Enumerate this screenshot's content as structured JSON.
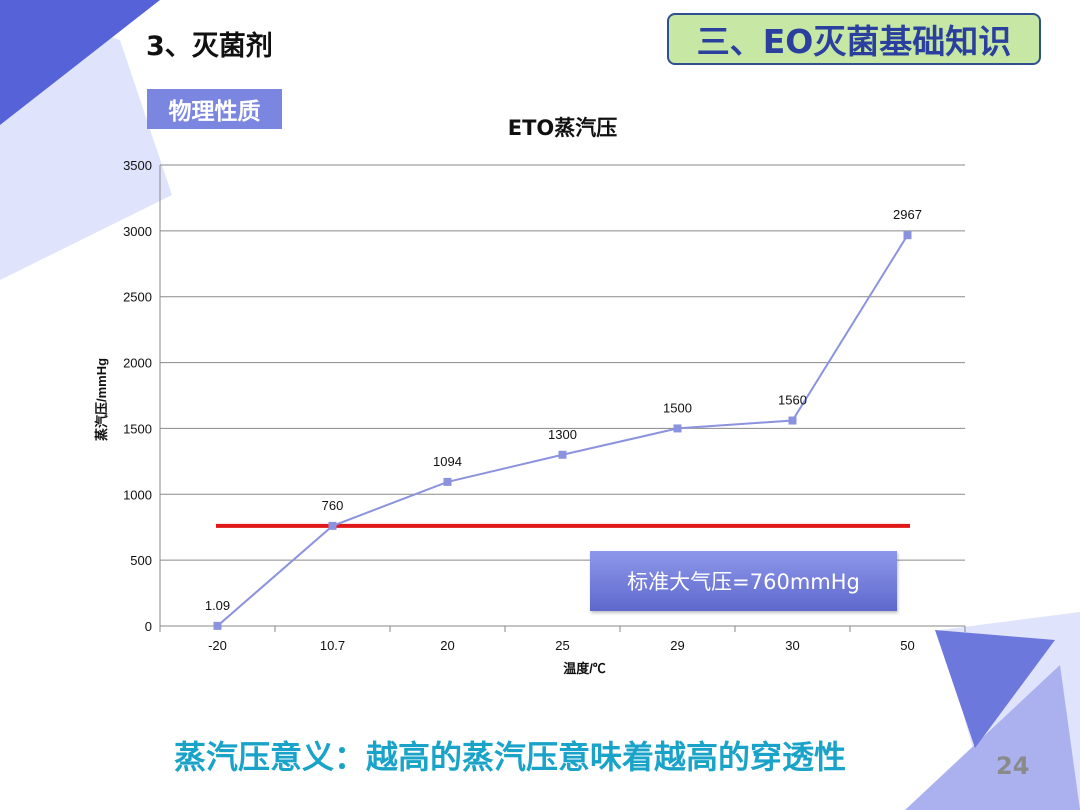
{
  "slide": {
    "section_title": "3、灭菌剂",
    "header_badge": "三、EO灭菌基础知识",
    "sub_label": "物理性质",
    "footer_text": "蒸汽压意义：越高的蒸汽压意味着越高的穿透性",
    "page_number": "24",
    "reference_label": "标准大气压=760mmHg"
  },
  "colors": {
    "line": "#8b93de",
    "reference_line": "#e01818",
    "footer": "#1aa3c9",
    "badge_bg": "#c6e8a4",
    "badge_text": "#2a3f9e",
    "deco_dark": "#5663d8",
    "deco_light": "#dfe3fb"
  },
  "chart_data": {
    "type": "line",
    "title": "ETO蒸汽压",
    "xlabel": "温度/℃",
    "ylabel": "蒸汽压/mmHg",
    "categories": [
      "-20",
      "10.7",
      "20",
      "25",
      "29",
      "30",
      "50"
    ],
    "values": [
      1.09,
      760,
      1094,
      1300,
      1500,
      1560,
      2967
    ],
    "data_labels": [
      "1.09",
      "760",
      "1094",
      "1300",
      "1500",
      "1560",
      "2967"
    ],
    "ylim": [
      0,
      3500
    ],
    "yticks": [
      0,
      500,
      1000,
      1500,
      2000,
      2500,
      3000,
      3500
    ],
    "grid": true,
    "reference_value": 760,
    "reference_label": "标准大气压=760mmHg"
  }
}
